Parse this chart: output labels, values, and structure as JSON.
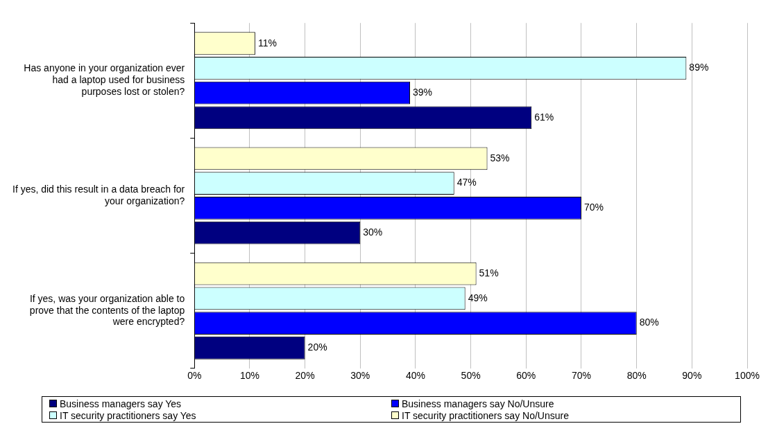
{
  "chart_data": {
    "type": "bar",
    "orientation": "horizontal",
    "categories": [
      "Has anyone in your organization ever had a laptop used for business purposes lost or stolen?",
      "If yes, did this result in a data breach for your organization?",
      "If yes, was your organization able to prove that the contents of the laptop were encrypted?"
    ],
    "series": [
      {
        "name": "Business managers say Yes",
        "color": "#000080",
        "values": [
          61,
          30,
          20
        ],
        "value_labels": [
          "61%",
          "30%",
          "20%"
        ]
      },
      {
        "name": "Business managers say No/Unsure",
        "color": "#0000ff",
        "values": [
          39,
          70,
          80
        ],
        "value_labels": [
          "39%",
          "70%",
          "80%"
        ]
      },
      {
        "name": "IT security practitioners say Yes",
        "color": "#ccffff",
        "values": [
          89,
          47,
          49
        ],
        "value_labels": [
          "89%",
          "47%",
          "49%"
        ]
      },
      {
        "name": "IT security practitioners say No/Unsure",
        "color": "#ffffcc",
        "values": [
          11,
          53,
          51
        ],
        "value_labels": [
          "11%",
          "53%",
          "51%"
        ]
      }
    ],
    "xlim": [
      0,
      100
    ],
    "xticks": [
      {
        "value": 0,
        "label": "0%"
      },
      {
        "value": 10,
        "label": "10%"
      },
      {
        "value": 20,
        "label": "20%"
      },
      {
        "value": 30,
        "label": "30%"
      },
      {
        "value": 40,
        "label": "40%"
      },
      {
        "value": 50,
        "label": "50%"
      },
      {
        "value": 60,
        "label": "60%"
      },
      {
        "value": 70,
        "label": "70%"
      },
      {
        "value": 80,
        "label": "80%"
      },
      {
        "value": 90,
        "label": "90%"
      },
      {
        "value": 100,
        "label": "100%"
      }
    ],
    "grid": "x",
    "legend": "bottom"
  }
}
